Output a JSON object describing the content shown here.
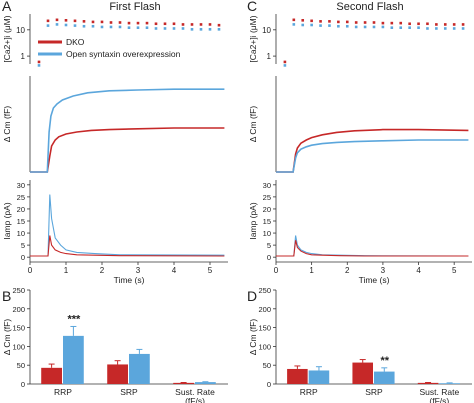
{
  "panel_letters": {
    "a": "A",
    "b": "B",
    "c": "C",
    "d": "D"
  },
  "titles": {
    "first": "First Flash",
    "second": "Second Flash"
  },
  "legend": {
    "dko": "DKO",
    "open": "Open syntaxin overexpression"
  },
  "colors": {
    "dko": "#c62828",
    "open": "#5ba6dc"
  },
  "chart_data": [
    {
      "id": "A-ca",
      "type": "scatter",
      "ylabel": "[Ca2+]i (μM)",
      "yscale": "log",
      "yticks": [
        "1",
        "10"
      ],
      "xlim": [
        0,
        5.5
      ],
      "ylim": [
        0.5,
        40
      ],
      "series": [
        {
          "name": "DKO",
          "x": [
            0.25,
            0.5,
            0.75,
            1.0,
            1.25,
            1.5,
            1.75,
            2.0,
            2.25,
            2.5,
            2.75,
            3.0,
            3.25,
            3.5,
            3.75,
            4.0,
            4.25,
            4.5,
            4.75,
            5.0,
            5.25
          ],
          "y": [
            0.6,
            22,
            24,
            23,
            22,
            21,
            20,
            20,
            19,
            19,
            18,
            18,
            18,
            17,
            17,
            17,
            16,
            16,
            16,
            16,
            15
          ]
        },
        {
          "name": "Open syntaxin overexpression",
          "x": [
            0.25,
            0.5,
            0.75,
            1.0,
            1.25,
            1.5,
            1.75,
            2.0,
            2.25,
            2.5,
            2.75,
            3.0,
            3.25,
            3.5,
            3.75,
            4.0,
            4.25,
            4.5,
            4.75,
            5.0,
            5.25
          ],
          "y": [
            0.55,
            18,
            20,
            19,
            18,
            17,
            17,
            16,
            16,
            16,
            15,
            15,
            15,
            14,
            14,
            14,
            14,
            13,
            13,
            13,
            13
          ]
        }
      ]
    },
    {
      "id": "A-cm",
      "type": "line",
      "ylabel": "Δ Cm (fF)",
      "xlim": [
        0,
        5.5
      ],
      "ylim": [
        0,
        240
      ],
      "series": [
        {
          "name": "DKO",
          "x": [
            0,
            0.48,
            0.55,
            0.6,
            0.7,
            0.8,
            1.0,
            1.3,
            1.7,
            2.2,
            3,
            4,
            5.4
          ],
          "y": [
            0,
            0,
            40,
            65,
            80,
            88,
            95,
            100,
            104,
            106,
            108,
            110,
            110
          ]
        },
        {
          "name": "Open syntaxin overexpression",
          "x": [
            0,
            0.48,
            0.53,
            0.58,
            0.65,
            0.75,
            0.9,
            1.2,
            1.6,
            2.2,
            3,
            4,
            5.4
          ],
          "y": [
            0,
            0,
            100,
            140,
            160,
            170,
            180,
            190,
            198,
            203,
            205,
            207,
            207
          ]
        }
      ]
    },
    {
      "id": "A-amp",
      "type": "line",
      "ylabel": "Iamp (pA)",
      "xlabel": "Time (s)",
      "xticks": [
        0,
        1,
        2,
        3,
        4,
        5
      ],
      "yticks": [
        0,
        5,
        10,
        15,
        20,
        25,
        30
      ],
      "xlim": [
        0,
        5.5
      ],
      "ylim": [
        -2,
        32
      ],
      "series": [
        {
          "name": "DKO",
          "x": [
            0,
            0.5,
            0.55,
            0.6,
            0.7,
            0.85,
            1.0,
            1.3,
            1.8,
            2.5,
            5.4
          ],
          "y": [
            0.5,
            0.5,
            9,
            5,
            3,
            2,
            1.5,
            1,
            0.8,
            0.6,
            0.5
          ]
        },
        {
          "name": "Open syntaxin overexpression",
          "x": [
            0,
            0.5,
            0.55,
            0.6,
            0.7,
            0.85,
            1.0,
            1.3,
            1.8,
            2.5,
            5.4
          ],
          "y": [
            0.5,
            0.5,
            26,
            16,
            8,
            5,
            3,
            2,
            1.5,
            1,
            0.8
          ]
        }
      ]
    },
    {
      "id": "B",
      "type": "bar",
      "ylabel": "Δ Cm (fF)",
      "yticks": [
        0,
        50,
        100,
        150,
        200,
        250
      ],
      "ylim": [
        0,
        250
      ],
      "categories": [
        "RRP",
        "SRP",
        "Sust. Rate (fF/s)"
      ],
      "series": [
        {
          "name": "DKO",
          "values": [
            43,
            52,
            3
          ],
          "errors": [
            10,
            10,
            1
          ]
        },
        {
          "name": "Open syntaxin overexpression",
          "values": [
            128,
            80,
            5
          ],
          "errors": [
            25,
            12,
            1
          ]
        }
      ],
      "annotations": [
        {
          "category": "RRP",
          "text": "***"
        }
      ]
    },
    {
      "id": "C-ca",
      "type": "scatter",
      "ylabel": "[Ca2+]i (μM)",
      "yscale": "log",
      "yticks": [
        "1",
        "10"
      ],
      "xlim": [
        0,
        5.5
      ],
      "ylim": [
        0.5,
        40
      ],
      "series": [
        {
          "name": "DKO",
          "x": [
            0.25,
            0.5,
            0.75,
            1.0,
            1.25,
            1.5,
            1.75,
            2.0,
            2.25,
            2.5,
            2.75,
            3.0,
            3.25,
            3.5,
            3.75,
            4.0,
            4.25,
            4.5,
            4.75,
            5.0,
            5.25
          ],
          "y": [
            0.6,
            24,
            23,
            22,
            21,
            21,
            20,
            20,
            19,
            19,
            19,
            18,
            18,
            18,
            17,
            17,
            17,
            16,
            16,
            16,
            16
          ]
        },
        {
          "name": "Open syntaxin overexpression",
          "x": [
            0.25,
            0.5,
            0.75,
            1.0,
            1.25,
            1.5,
            1.75,
            2.0,
            2.25,
            2.5,
            2.75,
            3.0,
            3.25,
            3.5,
            3.75,
            4.0,
            4.25,
            4.5,
            4.75,
            5.0,
            5.25
          ],
          "y": [
            0.55,
            20,
            19,
            19,
            18,
            18,
            17,
            17,
            16,
            16,
            16,
            16,
            15,
            15,
            15,
            15,
            14,
            14,
            14,
            14,
            14
          ]
        }
      ]
    },
    {
      "id": "C-cm",
      "type": "line",
      "ylabel": "Δ Cm (fF)",
      "xlim": [
        0,
        5.5
      ],
      "ylim": [
        0,
        240
      ],
      "series": [
        {
          "name": "DKO",
          "x": [
            0,
            0.48,
            0.55,
            0.6,
            0.7,
            0.85,
            1.0,
            1.3,
            1.7,
            2.2,
            3,
            4,
            5.4
          ],
          "y": [
            0,
            0,
            45,
            60,
            72,
            80,
            86,
            93,
            99,
            103,
            106,
            106,
            104
          ]
        },
        {
          "name": "Open syntaxin overexpression",
          "x": [
            0,
            0.48,
            0.55,
            0.6,
            0.7,
            0.85,
            1.0,
            1.3,
            1.7,
            2.2,
            3,
            4,
            5.4
          ],
          "y": [
            0,
            0,
            35,
            48,
            57,
            63,
            67,
            71,
            74,
            76,
            78,
            80,
            80
          ]
        }
      ]
    },
    {
      "id": "C-amp",
      "type": "line",
      "ylabel": "Iamp (pA)",
      "xlabel": "Time (s)",
      "xticks": [
        0,
        1,
        2,
        3,
        4,
        5
      ],
      "yticks": [
        0,
        5,
        10,
        15,
        20,
        25,
        30
      ],
      "xlim": [
        0,
        5.5
      ],
      "ylim": [
        -2,
        32
      ],
      "series": [
        {
          "name": "DKO",
          "x": [
            0,
            0.5,
            0.55,
            0.6,
            0.7,
            0.85,
            1.0,
            1.3,
            1.8,
            2.5,
            5.4
          ],
          "y": [
            0.5,
            0.5,
            7,
            4,
            2.5,
            1.5,
            1,
            0.8,
            0.6,
            0.5,
            0.5
          ]
        },
        {
          "name": "Open syntaxin overexpression",
          "x": [
            0,
            0.5,
            0.55,
            0.6,
            0.7,
            0.85,
            1.0,
            1.3,
            1.8,
            2.5,
            5.4
          ],
          "y": [
            0.5,
            0.5,
            9,
            5,
            3,
            2,
            1.5,
            1,
            0.8,
            0.6,
            0.5
          ]
        }
      ]
    },
    {
      "id": "D",
      "type": "bar",
      "ylabel": "Δ Cm (fF)",
      "yticks": [
        0,
        50,
        100,
        150,
        200,
        250
      ],
      "ylim": [
        0,
        250
      ],
      "categories": [
        "RRP",
        "SRP",
        "Sust. Rate (fF/s)"
      ],
      "series": [
        {
          "name": "DKO",
          "values": [
            40,
            57,
            3
          ],
          "errors": [
            8,
            8,
            1
          ]
        },
        {
          "name": "Open syntaxin overexpression",
          "values": [
            36,
            33,
            2
          ],
          "errors": [
            10,
            10,
            1
          ]
        }
      ],
      "annotations": [
        {
          "category": "SRP",
          "text": "**"
        }
      ]
    }
  ]
}
